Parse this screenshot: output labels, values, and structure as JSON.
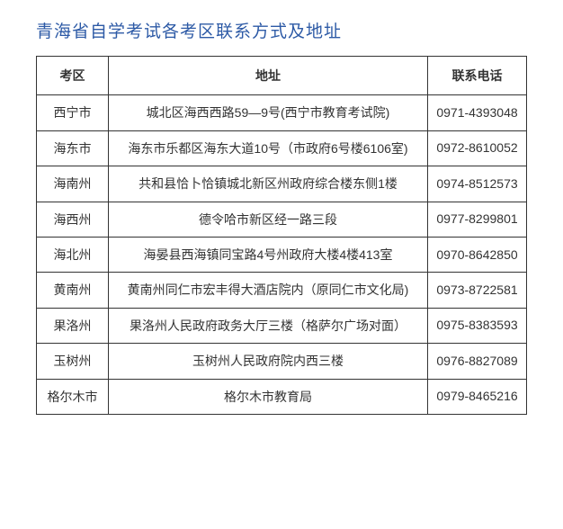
{
  "title": "青海省自学考试各考区联系方式及地址",
  "table": {
    "headers": {
      "district": "考区",
      "address": "地址",
      "phone": "联系电话"
    },
    "rows": [
      {
        "district": "西宁市",
        "address": "城北区海西西路59—9号(西宁市教育考试院)",
        "phone": "0971-4393048"
      },
      {
        "district": "海东市",
        "address": "海东市乐都区海东大道10号（市政府6号楼6106室)",
        "phone": "0972-8610052"
      },
      {
        "district": "海南州",
        "address": "共和县恰卜恰镇城北新区州政府综合楼东侧1楼",
        "phone": "0974-8512573"
      },
      {
        "district": "海西州",
        "address": "德令哈市新区经一路三段",
        "phone": "0977-8299801"
      },
      {
        "district": "海北州",
        "address": "海晏县西海镇同宝路4号州政府大楼4楼413室",
        "phone": "0970-8642850"
      },
      {
        "district": "黄南州",
        "address": "黄南州同仁市宏丰得大酒店院内（原同仁市文化局)",
        "phone": "0973-8722581"
      },
      {
        "district": "果洛州",
        "address": "果洛州人民政府政务大厅三楼（格萨尔广场对面）",
        "phone": "0975-8383593"
      },
      {
        "district": "玉树州",
        "address": "玉树州人民政府院内西三楼",
        "phone": "0976-8827089"
      },
      {
        "district": "格尔木市",
        "address": "格尔木市教育局",
        "phone": "0979-8465216"
      }
    ]
  },
  "styling": {
    "title_color": "#2d5aa6",
    "title_fontsize": 19,
    "border_color": "#333333",
    "text_color": "#333333",
    "cell_fontsize": 14,
    "background_color": "#ffffff",
    "col_widths": {
      "district": 80,
      "phone": 110
    }
  }
}
